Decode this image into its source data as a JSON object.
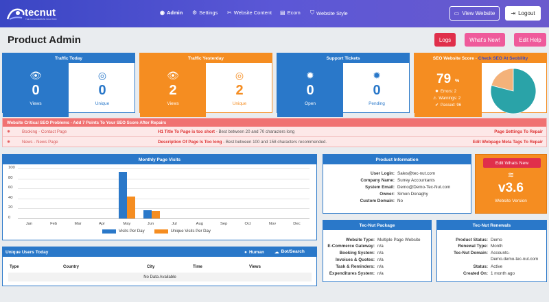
{
  "app": {
    "logo_text": "tecnut",
    "logo_sub": "THE TECH WEBSITE SOLUTION"
  },
  "nav": {
    "admin": "Admin",
    "settings": "Settings",
    "website_content": "Website Content",
    "ecom": "Ecom",
    "website_style": "Website Style",
    "view_website": "View Website",
    "logout": "Logout"
  },
  "header": {
    "title": "Product Admin",
    "logs": "Logs",
    "whats_new": "What's New!",
    "edit_help": "Edit Help"
  },
  "colors": {
    "blue": "#2a78c9",
    "orange": "#f58d21",
    "red": "#f07272",
    "pink": "#ef5a9b",
    "crimson": "#e02f4b",
    "teal": "#2aa3a8",
    "peach": "#f4b27a"
  },
  "traffic_today": {
    "title": "Traffic Today",
    "views": "0",
    "views_label": "Views",
    "unique": "0",
    "unique_label": "Unique"
  },
  "traffic_yesterday": {
    "title": "Traffic Yesterday",
    "views": "2",
    "views_label": "Views",
    "unique": "2",
    "unique_label": "Unique"
  },
  "support": {
    "title": "Support Tickets",
    "open": "0",
    "open_label": "Open",
    "pending": "0",
    "pending_label": "Pending"
  },
  "seo": {
    "title": "SEO Website Score - ",
    "link": "Check SEO At Seobility",
    "score": "79",
    "pct": "%",
    "errors": "Errors: 2",
    "warnings": "Warnings: 2",
    "passed": "Passed: 96",
    "pie_passed_fraction": 0.79
  },
  "alerts": {
    "title": "Website Critical SEO Problems - Add 7 Points To Your SEO Score After Repairs",
    "rows": [
      {
        "page": "Booking - Contact Page",
        "problem": "H1 Title To Page is too short",
        "detail": " - Best between 20 and 70 characters long",
        "fix": "Page Settings To Repair"
      },
      {
        "page": "News - News Page",
        "problem": "Description Of Page Is Too long",
        "detail": " - Best between 100 and 158 characters recommended.",
        "fix": "Edit Webpage Meta Tags To Repair"
      }
    ]
  },
  "visits": {
    "title": "Monthly Page Visits",
    "legend_a": "Visits Per Day",
    "legend_b": "Unique Visits Per Day"
  },
  "chart_data": {
    "type": "bar",
    "categories": [
      "Jan",
      "Feb",
      "Mar",
      "Apr",
      "May",
      "Jun",
      "Jul",
      "Aug",
      "Sep",
      "Oct",
      "Nov",
      "Dec"
    ],
    "series": [
      {
        "name": "Visits Per Day",
        "color": "#2a78c9",
        "values": [
          0,
          0,
          0,
          0,
          93,
          17,
          0,
          0,
          0,
          0,
          0,
          0
        ]
      },
      {
        "name": "Unique Visits Per Day",
        "color": "#f58d21",
        "values": [
          0,
          0,
          0,
          0,
          44,
          15,
          0,
          0,
          0,
          0,
          0,
          0
        ]
      }
    ],
    "yticks": [
      "100",
      "80",
      "60",
      "40",
      "20",
      "0"
    ],
    "ylim": [
      0,
      100
    ],
    "title": "Monthly Page Visits",
    "grid": true,
    "legend": "bottom"
  },
  "unique_users": {
    "title": "Unique Users Today",
    "human": "Human",
    "bot": "Bot/Search",
    "columns": [
      "Type",
      "Country",
      "City",
      "Time",
      "Views"
    ],
    "empty": "No Data Available"
  },
  "product_info": {
    "title": "Product Information",
    "rows": [
      {
        "k": "User Login:",
        "v": "Sales@tec-nut.com"
      },
      {
        "k": "Company Name:",
        "v": "Surrey Accountants"
      },
      {
        "k": "System Email:",
        "v": "Demo@Demo-Tec-Nut.com"
      },
      {
        "k": "Owner:",
        "v": "Simon Donaghy"
      },
      {
        "k": "Custom Domain:",
        "v": "No"
      }
    ]
  },
  "version": {
    "edit": "Edit Whats New",
    "number": "v3.6",
    "label": "Website Version"
  },
  "package": {
    "title": "Tec-Nut Package",
    "rows": [
      {
        "k": "Website Type:",
        "v": "Multiple Page Website"
      },
      {
        "k": "E-Commerce Gateway:",
        "v": "n/a"
      },
      {
        "k": "Booking System:",
        "v": "n/a"
      },
      {
        "k": "Invoices & Quotes:",
        "v": "n/a"
      },
      {
        "k": "Task & Reminders:",
        "v": "n/a"
      },
      {
        "k": "Expenditures System:",
        "v": "n/a"
      }
    ]
  },
  "renewals": {
    "title": "Tec-Nut Renewals",
    "rows": [
      {
        "k": "Product Status:",
        "v": "Demo"
      },
      {
        "k": "Renewal Type:",
        "v": "Month"
      },
      {
        "k": "Tec-Nut Domain:",
        "v": "Accounts-"
      },
      {
        "k": "",
        "v": "Demo.demo-tec-nut.com"
      },
      {
        "k": "Status:",
        "v": "Active"
      },
      {
        "k": "Created On:",
        "v": "1 month ago"
      }
    ]
  }
}
